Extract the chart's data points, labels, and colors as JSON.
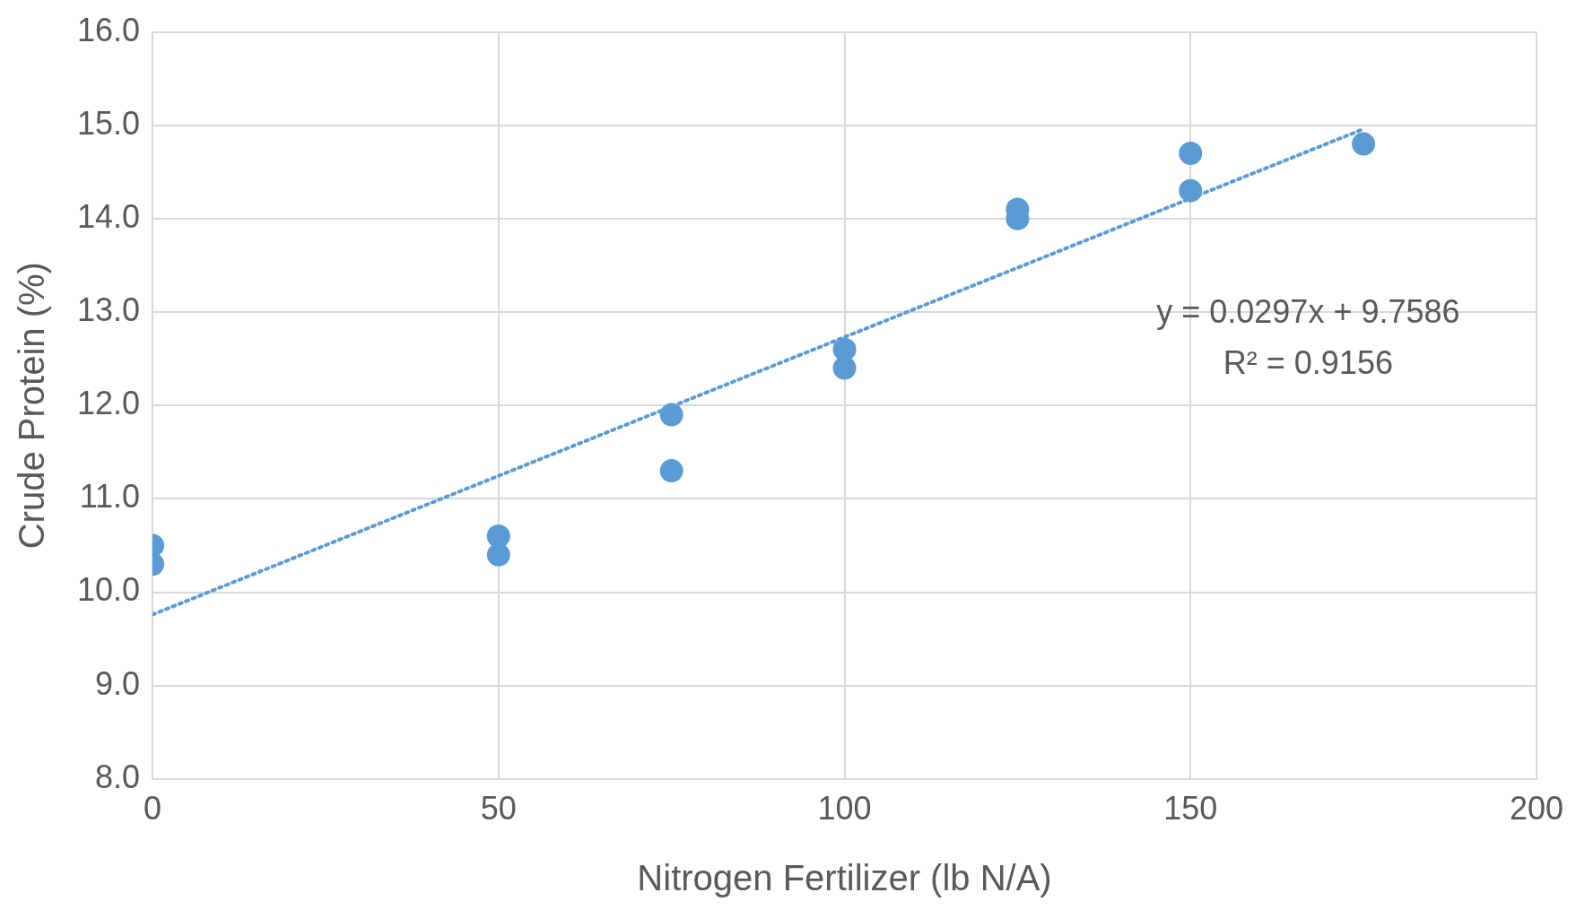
{
  "chart_data": {
    "type": "scatter",
    "xlabel": "Nitrogen Fertilizer (lb N/A)",
    "ylabel": "Crude Protein (%)",
    "xlim": [
      0,
      200
    ],
    "xticks": [
      0,
      50,
      100,
      150,
      200
    ],
    "ylim": [
      8,
      16
    ],
    "yticks": [
      {
        "value": 8,
        "label": "8.0"
      },
      {
        "value": 9,
        "label": "9.0"
      },
      {
        "value": 10,
        "label": "10.0"
      },
      {
        "value": 11,
        "label": "11.0"
      },
      {
        "value": 12,
        "label": "12.0"
      },
      {
        "value": 13,
        "label": "13.0"
      },
      {
        "value": 14,
        "label": "14.0"
      },
      {
        "value": 15,
        "label": "15.0"
      },
      {
        "value": 16,
        "label": "16.0"
      }
    ],
    "grid": true,
    "legend": false,
    "marker": "circle",
    "series": [
      {
        "type": "scatter",
        "color": "#5b9bd5",
        "x": [
          0,
          0,
          50,
          50,
          75,
          75,
          100,
          100,
          125,
          125,
          150,
          150,
          175
        ],
        "values": [
          10.5,
          10.3,
          10.6,
          10.4,
          11.9,
          11.3,
          12.6,
          12.4,
          14.1,
          14.0,
          14.7,
          14.3,
          14.8
        ]
      },
      {
        "type": "line",
        "color": "#5b9bd5",
        "x": [
          0,
          175
        ],
        "values": [
          9.76,
          14.96
        ],
        "marker": "none",
        "line_style": "dotted"
      }
    ],
    "annotations": [
      "y = 0.0297x + 9.7586",
      "R² = 0.9156"
    ]
  }
}
